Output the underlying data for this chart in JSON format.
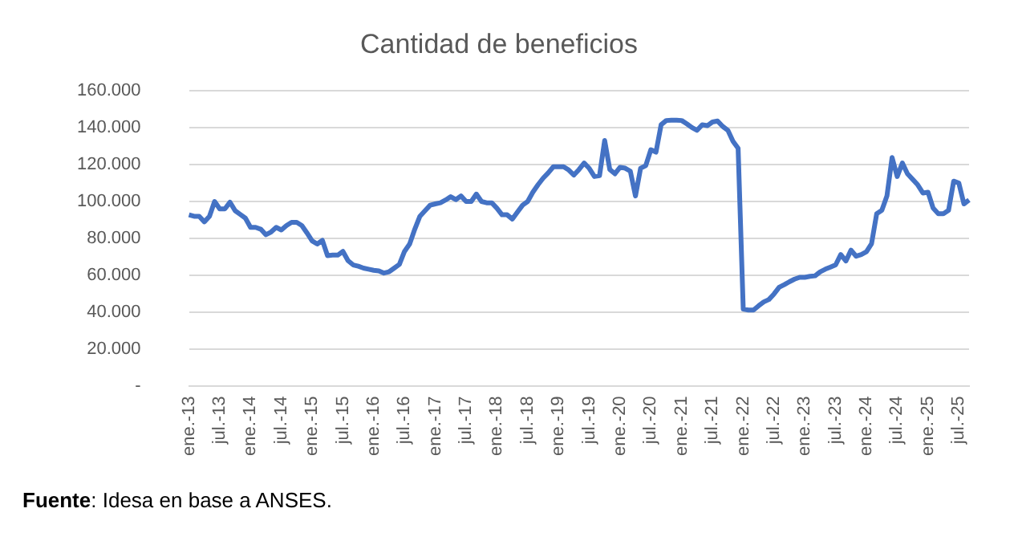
{
  "chart_data": {
    "type": "line",
    "title": "Cantidad de beneficios",
    "categories": [
      "ene.-13",
      null,
      null,
      null,
      null,
      null,
      "jul.-13",
      null,
      null,
      null,
      null,
      null,
      "ene.-14",
      null,
      null,
      null,
      null,
      null,
      "jul.-14",
      null,
      null,
      null,
      null,
      null,
      "ene.-15",
      null,
      null,
      null,
      null,
      null,
      "jul.-15",
      null,
      null,
      null,
      null,
      null,
      "ene.-16",
      null,
      null,
      null,
      null,
      null,
      "jul.-16",
      null,
      null,
      null,
      null,
      null,
      "ene.-17",
      null,
      null,
      null,
      null,
      null,
      "jul.-17",
      null,
      null,
      null,
      null,
      null,
      "ene.-18",
      null,
      null,
      null,
      null,
      null,
      "jul.-18",
      null,
      null,
      null,
      null,
      null,
      "ene.-19",
      null,
      null,
      null,
      null,
      null,
      "jul.-19",
      null,
      null,
      null,
      null,
      null,
      "ene.-20",
      null,
      null,
      null,
      null,
      null,
      "jul.-20",
      null,
      null,
      null,
      null,
      null,
      "ene.-21",
      null,
      null,
      null,
      null,
      null,
      "jul.-21",
      null,
      null,
      null,
      null,
      null,
      "ene.-22",
      null,
      null,
      null,
      null,
      null,
      "jul.-22",
      null,
      null,
      null,
      null,
      null,
      "ene.-23",
      null,
      null,
      null,
      null,
      null,
      "jul.-23",
      null,
      null,
      null,
      null,
      null,
      "ene.-24",
      null,
      null,
      null,
      null,
      null,
      "jul.-24",
      null,
      null,
      null,
      null,
      null,
      "ene.-25",
      null,
      null,
      null,
      null,
      null,
      "jul.-25",
      null,
      null
    ],
    "series": [
      {
        "color": "#4472c4",
        "values": [
          92800,
          92000,
          92000,
          89000,
          92000,
          100000,
          96000,
          96000,
          99600,
          95000,
          93000,
          91000,
          86000,
          86000,
          85000,
          82000,
          83500,
          86000,
          84600,
          87000,
          88700,
          88700,
          87000,
          83000,
          78700,
          77000,
          79000,
          70700,
          71000,
          71000,
          73000,
          68000,
          65700,
          65000,
          64000,
          63400,
          62800,
          62500,
          61300,
          62000,
          64000,
          66000,
          73000,
          77000,
          85000,
          92000,
          95000,
          98000,
          98700,
          99300,
          100800,
          102600,
          101000,
          103000,
          100000,
          100000,
          104000,
          100000,
          99300,
          99300,
          96400,
          92800,
          92800,
          90500,
          94300,
          98000,
          100000,
          105000,
          109000,
          112600,
          115500,
          118800,
          118800,
          118800,
          117000,
          114300,
          117300,
          120800,
          117900,
          113500,
          114000,
          133000,
          117300,
          115000,
          118500,
          118000,
          116400,
          103000,
          118000,
          119400,
          128000,
          126700,
          141500,
          143800,
          144000,
          144000,
          143800,
          142000,
          140000,
          138500,
          141500,
          141000,
          143000,
          143500,
          140600,
          138500,
          132600,
          128800,
          41800,
          41300,
          41300,
          43600,
          45700,
          47000,
          50000,
          53600,
          55000,
          56600,
          58000,
          59000,
          59000,
          59500,
          59800,
          62000,
          63400,
          64500,
          65700,
          71300,
          67800,
          73700,
          70400,
          71300,
          72800,
          77200,
          93400,
          95200,
          103000,
          123800,
          113500,
          120800,
          115000,
          112000,
          109000,
          104600,
          105000,
          96400,
          93400,
          93400,
          95200,
          111000,
          110000,
          98700,
          100800
        ]
      }
    ],
    "ylim": [
      0,
      160000
    ],
    "yticks": [
      {
        "value": 0,
        "label": "-"
      },
      {
        "value": 20000,
        "label": "20.000"
      },
      {
        "value": 40000,
        "label": "40.000"
      },
      {
        "value": 60000,
        "label": "60.000"
      },
      {
        "value": 80000,
        "label": "80.000"
      },
      {
        "value": 100000,
        "label": "100.000"
      },
      {
        "value": 120000,
        "label": "120.000"
      },
      {
        "value": 140000,
        "label": "140.000"
      },
      {
        "value": 160000,
        "label": "160.000"
      }
    ],
    "grid": "y",
    "annotations": [
      "Fuente: Idesa en base a ANSES."
    ]
  }
}
